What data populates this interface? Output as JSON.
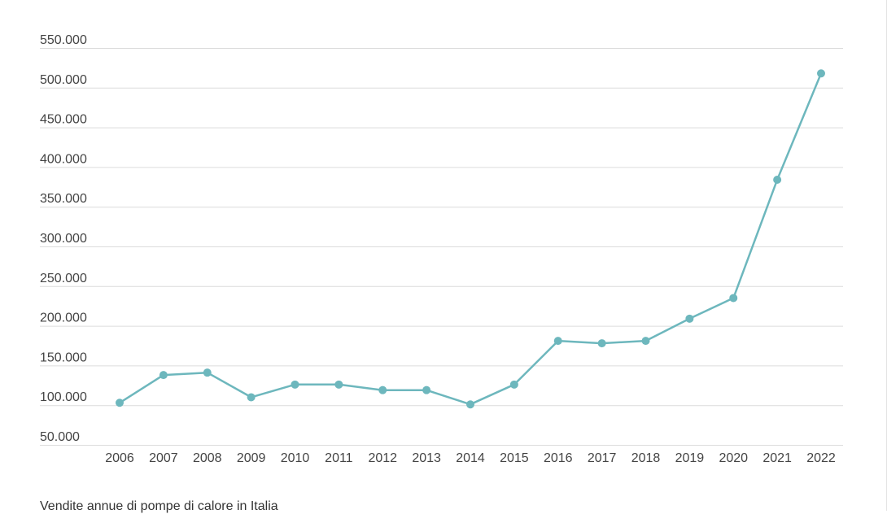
{
  "caption": "Vendite annue di pompe di calore in Italia",
  "chart_data": {
    "type": "line",
    "categories": [
      "2006",
      "2007",
      "2008",
      "2009",
      "2010",
      "2011",
      "2012",
      "2013",
      "2014",
      "2015",
      "2016",
      "2017",
      "2018",
      "2019",
      "2020",
      "2021",
      "2022"
    ],
    "series": [
      {
        "values": [
          103000,
          138000,
          141000,
          110000,
          126000,
          126000,
          119000,
          119000,
          101000,
          126000,
          181000,
          178000,
          181000,
          209000,
          235000,
          384000,
          518000
        ]
      }
    ],
    "y_ticks": [
      50000,
      100000,
      150000,
      200000,
      250000,
      300000,
      350000,
      400000,
      450000,
      500000,
      550000
    ],
    "y_tick_labels": [
      "50.000",
      "100.000",
      "150.000",
      "200.000",
      "250.000",
      "300.000",
      "350.000",
      "400.000",
      "450.000",
      "500.000",
      "550.000"
    ],
    "ylim": [
      45000,
      555000
    ],
    "grid": true,
    "line_color": "#6db7bd",
    "grid_color": "#dcdcdc",
    "legend": "none"
  }
}
